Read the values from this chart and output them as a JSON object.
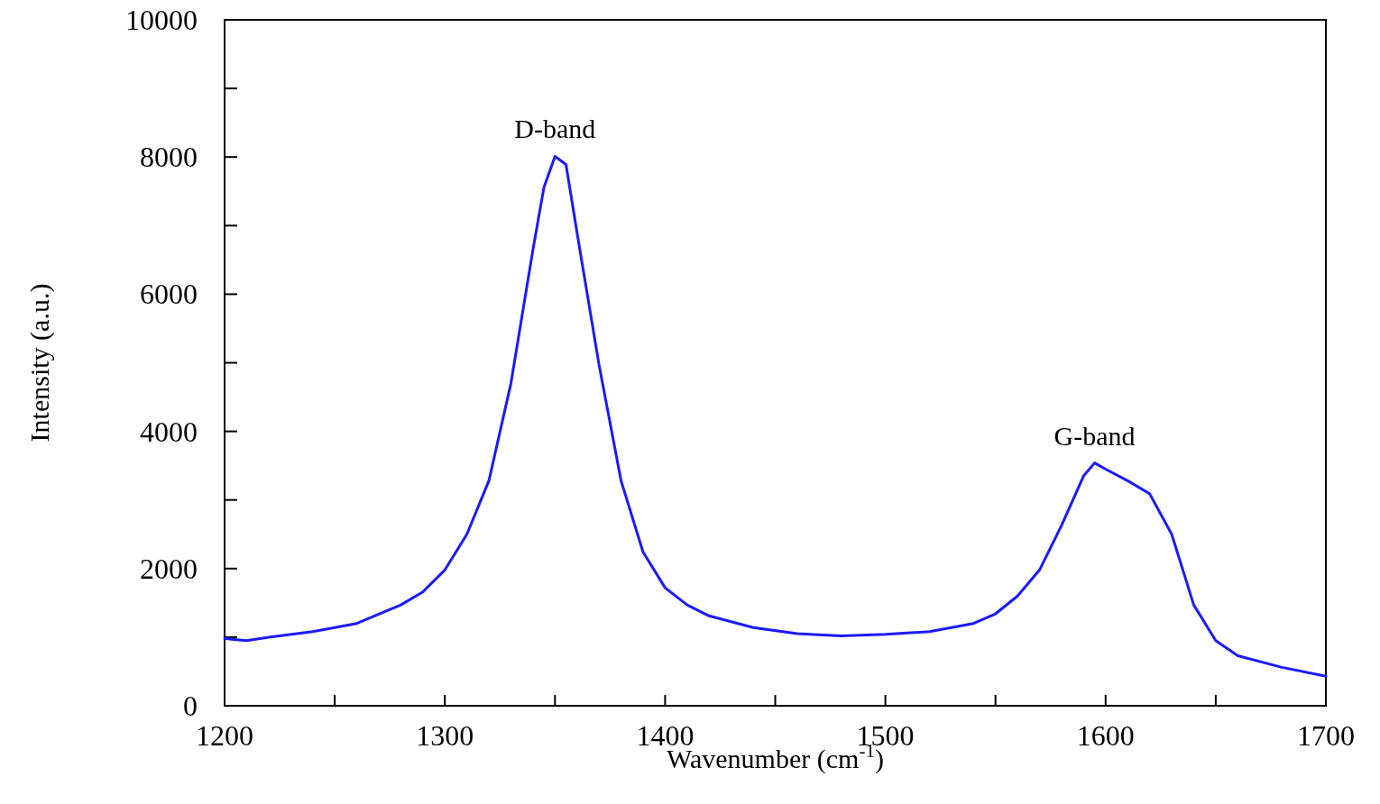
{
  "chart_data": {
    "type": "line",
    "xlabel": "Wavenumber (cm$^{-1}$)",
    "ylabel": "Intensity (a.u.)",
    "xlim": [
      1200,
      1700
    ],
    "ylim": [
      0,
      10000
    ],
    "xticks": [
      1200,
      {
        "value": 1250,
        "label": null
      },
      1300,
      {
        "value": 1350,
        "label": null
      },
      1400,
      {
        "value": 1450,
        "label": null
      },
      1500,
      {
        "value": 1550,
        "label": null
      },
      1600,
      {
        "value": 1650,
        "label": null
      },
      1700
    ],
    "yticks": [
      0,
      {
        "value": 1000,
        "label": null
      },
      2000,
      {
        "value": 3000,
        "label": null
      },
      4000,
      {
        "value": 5000,
        "label": null
      },
      6000,
      {
        "value": 7000,
        "label": null
      },
      8000,
      {
        "value": 9000,
        "label": null
      },
      10000
    ],
    "marker": "none",
    "line_style": "solid",
    "series": [
      {
        "color": "#1a1aff",
        "x": [
          1200,
          1210,
          1220,
          1240,
          1260,
          1280,
          1290,
          1300,
          1310,
          1320,
          1330,
          1340,
          1345,
          1350,
          1355,
          1360,
          1370,
          1380,
          1390,
          1400,
          1410,
          1420,
          1440,
          1460,
          1480,
          1500,
          1520,
          1540,
          1550,
          1560,
          1570,
          1580,
          1590,
          1595,
          1600,
          1610,
          1620,
          1630,
          1640,
          1650,
          1660,
          1680,
          1700
        ],
        "values": [
          980,
          950,
          1000,
          1080,
          1200,
          1470,
          1660,
          1980,
          2500,
          3280,
          4700,
          6650,
          7560,
          8010,
          7890,
          6900,
          4970,
          3280,
          2240,
          1720,
          1470,
          1310,
          1140,
          1050,
          1020,
          1040,
          1080,
          1200,
          1340,
          1600,
          1980,
          2630,
          3350,
          3540,
          3450,
          3280,
          3090,
          2500,
          1470,
          950,
          730,
          560,
          430
        ]
      }
    ],
    "annotations": [
      {
        "text": "D-band",
        "x": 1350,
        "y": 8010
      },
      {
        "text": "G-band",
        "x": 1595,
        "y": 3540
      }
    ]
  }
}
